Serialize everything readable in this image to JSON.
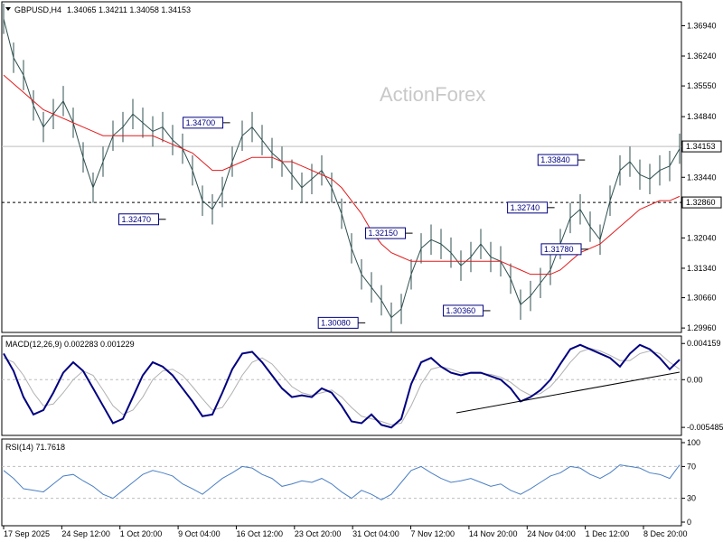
{
  "header": {
    "symbol_tf": "GBPUSD,H4",
    "ohlc": "1.34065 1.34211 1.34058 1.34153"
  },
  "watermark": "ActionForex",
  "chart_data": [
    {
      "type": "line",
      "panel": "price",
      "ylim": [
        1.299,
        1.3745
      ],
      "y_ticks": [
        "1.36940",
        "1.36240",
        "1.35550",
        "1.34840",
        "1.34153",
        "1.33440",
        "1.32860",
        "1.32040",
        "1.31340",
        "1.30660",
        "1.29960"
      ],
      "current_price": "1.34153",
      "support_line": "1.32860",
      "annotations": [
        {
          "text": "1.34700",
          "x": 0.335,
          "y": 1.347
        },
        {
          "text": "1.32470",
          "x": 0.24,
          "y": 1.3247
        },
        {
          "text": "1.32150",
          "x": 0.605,
          "y": 1.3215
        },
        {
          "text": "1.30080",
          "x": 0.535,
          "y": 1.3008
        },
        {
          "text": "1.30360",
          "x": 0.72,
          "y": 1.3036
        },
        {
          "text": "1.33840",
          "x": 0.86,
          "y": 1.3384
        },
        {
          "text": "1.32740",
          "x": 0.815,
          "y": 1.3274
        },
        {
          "text": "1.31780",
          "x": 0.865,
          "y": 1.3178
        }
      ],
      "series": [
        {
          "values": [
            1.371,
            1.362,
            1.358,
            1.351,
            1.346,
            1.349,
            1.352,
            1.347,
            1.339,
            1.332,
            1.338,
            1.344,
            1.346,
            1.349,
            1.347,
            1.345,
            1.346,
            1.343,
            1.341,
            1.336,
            1.329,
            1.327,
            1.331,
            1.338,
            1.344,
            1.346,
            1.343,
            1.34,
            1.338,
            1.335,
            1.332,
            1.334,
            1.336,
            1.332,
            1.326,
            1.318,
            1.312,
            1.309,
            1.306,
            1.302,
            1.304,
            1.312,
            1.318,
            1.32,
            1.319,
            1.317,
            1.314,
            1.316,
            1.319,
            1.316,
            1.315,
            1.311,
            1.305,
            1.307,
            1.31,
            1.313,
            1.319,
            1.325,
            1.327,
            1.323,
            1.32,
            1.329,
            1.336,
            1.338,
            1.335,
            1.334,
            1.336,
            1.337,
            1.341
          ]
        },
        {
          "values": [
            1.358,
            1.356,
            1.354,
            1.352,
            1.35,
            1.349,
            1.348,
            1.347,
            1.346,
            1.345,
            1.344,
            1.344,
            1.344,
            1.344,
            1.344,
            1.344,
            1.343,
            1.342,
            1.341,
            1.34,
            1.338,
            1.336,
            1.336,
            1.337,
            1.338,
            1.339,
            1.339,
            1.339,
            1.338,
            1.338,
            1.337,
            1.336,
            1.335,
            1.334,
            1.332,
            1.329,
            1.326,
            1.322,
            1.319,
            1.317,
            1.316,
            1.315,
            1.315,
            1.315,
            1.315,
            1.315,
            1.315,
            1.315,
            1.315,
            1.315,
            1.315,
            1.314,
            1.313,
            1.312,
            1.312,
            1.312,
            1.313,
            1.315,
            1.317,
            1.318,
            1.319,
            1.321,
            1.323,
            1.325,
            1.327,
            1.328,
            1.329,
            1.329,
            1.33
          ]
        }
      ]
    },
    {
      "type": "line",
      "panel": "macd",
      "title": "MACD(12,26,9) 0.002283 0.001229",
      "ylim": [
        -0.0062,
        0.0046
      ],
      "y_ticks": [
        "0.004159",
        "0.00",
        "-0.005485"
      ],
      "series": [
        {
          "values": [
            0.003,
            0.001,
            -0.002,
            -0.004,
            -0.0035,
            -0.0015,
            0.0008,
            0.002,
            0.001,
            -0.001,
            -0.003,
            -0.005,
            -0.0045,
            -0.002,
            0.0005,
            0.002,
            0.0015,
            0.0005,
            -0.001,
            -0.0025,
            -0.0042,
            -0.004,
            -0.0015,
            0.0012,
            0.003,
            0.0032,
            0.002,
            0.0005,
            -0.001,
            -0.002,
            -0.0018,
            -0.002,
            -0.001,
            -0.0015,
            -0.003,
            -0.0048,
            -0.005,
            -0.004,
            -0.0052,
            -0.0055,
            -0.0045,
            -0.0005,
            0.002,
            0.0025,
            0.0015,
            0.0008,
            0.0005,
            0.0008,
            0.0008,
            0.0004,
            0.0,
            -0.001,
            -0.0025,
            -0.002,
            -0.0012,
            0.0,
            0.0018,
            0.0035,
            0.004,
            0.0035,
            0.003,
            0.0025,
            0.0015,
            0.003,
            0.004,
            0.0035,
            0.0025,
            0.0012,
            0.0023
          ]
        },
        {
          "values": [
            0.0025,
            0.002,
            0.0005,
            -0.0015,
            -0.003,
            -0.0028,
            -0.0015,
            0.0,
            0.001,
            0.0005,
            -0.0012,
            -0.003,
            -0.004,
            -0.0035,
            -0.002,
            0.0,
            0.001,
            0.0012,
            0.0005,
            -0.0008,
            -0.0022,
            -0.0035,
            -0.0032,
            -0.0015,
            0.0005,
            0.002,
            0.0025,
            0.0018,
            0.0005,
            -0.0008,
            -0.0015,
            -0.0018,
            -0.0015,
            -0.0012,
            -0.002,
            -0.0032,
            -0.0042,
            -0.0045,
            -0.0048,
            -0.0052,
            -0.005,
            -0.003,
            -0.0005,
            0.0012,
            0.0015,
            0.0012,
            0.0008,
            0.0007,
            0.0007,
            0.0006,
            0.0003,
            -0.0003,
            -0.0012,
            -0.0018,
            -0.0016,
            -0.0008,
            0.0005,
            0.002,
            0.0032,
            0.0036,
            0.0033,
            0.0028,
            0.0022,
            0.0022,
            0.003,
            0.0033,
            0.003,
            0.002,
            0.0012
          ]
        }
      ]
    },
    {
      "type": "line",
      "panel": "rsi",
      "title": "RSI(14) 71.7618",
      "ylim": [
        0,
        100
      ],
      "y_ticks": [
        "100",
        "70",
        "30",
        "0"
      ],
      "series": [
        {
          "values": [
            65,
            55,
            42,
            40,
            38,
            48,
            58,
            60,
            52,
            45,
            35,
            30,
            40,
            50,
            60,
            65,
            62,
            58,
            48,
            42,
            35,
            45,
            55,
            62,
            70,
            68,
            60,
            55,
            45,
            48,
            52,
            50,
            55,
            48,
            38,
            30,
            40,
            35,
            28,
            35,
            50,
            65,
            70,
            62,
            55,
            50,
            52,
            55,
            50,
            45,
            48,
            40,
            35,
            42,
            50,
            58,
            62,
            70,
            68,
            60,
            55,
            62,
            72,
            70,
            68,
            62,
            60,
            55,
            72
          ]
        }
      ]
    }
  ],
  "x_axis": {
    "labels": [
      "17 Sep 2025",
      "24 Sep 12:00",
      "1 Oct 20:00",
      "9 Oct 04:00",
      "16 Oct 12:00",
      "23 Oct 20:00",
      "31 Oct 04:00",
      "7 Nov 12:00",
      "14 Nov 20:00",
      "24 Nov 04:00",
      "1 Dec 12:00",
      "8 Dec 20:00"
    ]
  },
  "colors": {
    "price": "#2f4f4f",
    "ma": "#e31a1c",
    "macd": "#000080",
    "signal": "#b0b0b0",
    "grid": "#bdbdbd",
    "label_border": "#000080",
    "label_text": "#000080"
  }
}
